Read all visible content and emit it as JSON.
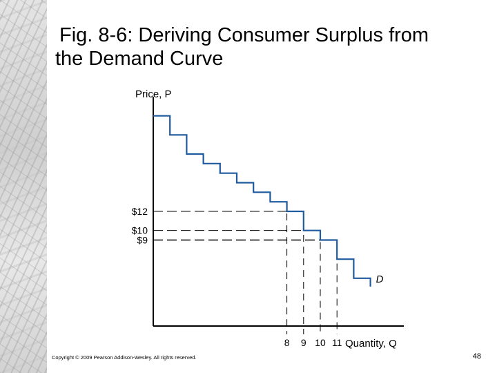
{
  "slide": {
    "title_line1": "Fig. 8-6: Deriving Consumer Surplus from",
    "title_line2": "the Demand Curve",
    "copyright": "Copyright © 2009 Pearson Addison-Wesley. All rights reserved.",
    "page_number": "48"
  },
  "colors": {
    "demand_curve": "#1f5a9e",
    "axes": "#000000",
    "guides": "#000000",
    "background": "#ffffff"
  },
  "chart_data": {
    "type": "line",
    "subtype": "step",
    "title": "",
    "ylabel": "Price, P",
    "xlabel": "Quantity, Q",
    "y_ticks": [
      {
        "label": "$12",
        "value": 12
      },
      {
        "label": "$10",
        "value": 10
      },
      {
        "label": "$9",
        "value": 9
      }
    ],
    "x_ticks": [
      {
        "label": "8",
        "value": 8
      },
      {
        "label": "9",
        "value": 9
      },
      {
        "label": "10",
        "value": 10
      },
      {
        "label": "11",
        "value": 11
      }
    ],
    "xlim": [
      0,
      15
    ],
    "ylim": [
      0,
      24
    ],
    "series": [
      {
        "name": "D",
        "steps": [
          {
            "q_start": 0,
            "q_end": 1,
            "price": 22
          },
          {
            "q_start": 1,
            "q_end": 2,
            "price": 20
          },
          {
            "q_start": 2,
            "q_end": 3,
            "price": 18
          },
          {
            "q_start": 3,
            "q_end": 4,
            "price": 17
          },
          {
            "q_start": 4,
            "q_end": 5,
            "price": 16
          },
          {
            "q_start": 5,
            "q_end": 6,
            "price": 15
          },
          {
            "q_start": 6,
            "q_end": 7,
            "price": 14
          },
          {
            "q_start": 7,
            "q_end": 8,
            "price": 13
          },
          {
            "q_start": 8,
            "q_end": 9,
            "price": 12
          },
          {
            "q_start": 9,
            "q_end": 10,
            "price": 10
          },
          {
            "q_start": 10,
            "q_end": 11,
            "price": 9
          },
          {
            "q_start": 11,
            "q_end": 12,
            "price": 7
          },
          {
            "q_start": 12,
            "q_end": 13,
            "price": 5
          }
        ]
      }
    ],
    "grid": false,
    "legend": "none"
  }
}
